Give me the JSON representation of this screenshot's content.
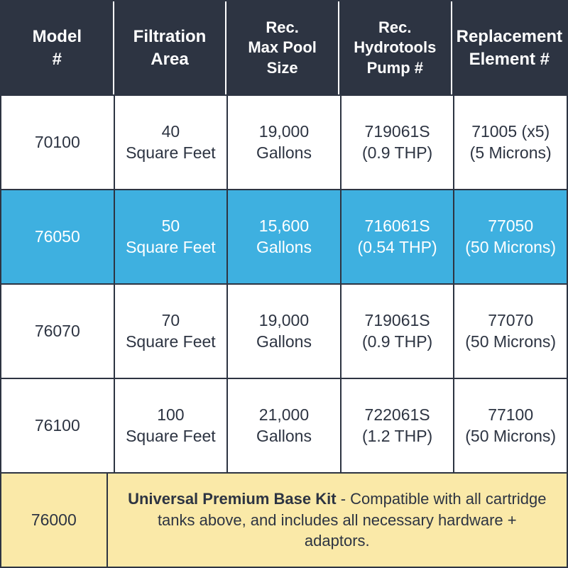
{
  "colors": {
    "header_bg": "#2d3442",
    "header_text": "#ffffff",
    "border": "#2d3442",
    "cell_bg": "#ffffff",
    "cell_text": "#2d3442",
    "highlight_bg": "#3eb0e0",
    "highlight_text": "#ffffff",
    "footer_bg": "#fae9a8"
  },
  "headers": [
    {
      "l1": "Model",
      "l2": "#"
    },
    {
      "l1": "Filtration",
      "l2": "Area"
    },
    {
      "l1": "Rec.",
      "l2": "Max Pool",
      "l3": "Size"
    },
    {
      "l1": "Rec.",
      "l2": "Hydrotools",
      "l3": "Pump #"
    },
    {
      "l1": "Replacement",
      "l2": "Element #"
    }
  ],
  "rows": [
    {
      "highlight": false,
      "model": "70100",
      "filtration_l1": "40",
      "filtration_l2": "Square Feet",
      "pool_l1": "19,000",
      "pool_l2": "Gallons",
      "pump_l1": "719061S",
      "pump_l2": "(0.9 THP)",
      "elem_l1": "71005 (x5)",
      "elem_l2": "(5 Microns)"
    },
    {
      "highlight": true,
      "model": "76050",
      "filtration_l1": "50",
      "filtration_l2": "Square Feet",
      "pool_l1": "15,600",
      "pool_l2": "Gallons",
      "pump_l1": "716061S",
      "pump_l2": "(0.54 THP)",
      "elem_l1": "77050",
      "elem_l2": "(50 Microns)"
    },
    {
      "highlight": false,
      "model": "76070",
      "filtration_l1": "70",
      "filtration_l2": "Square Feet",
      "pool_l1": "19,000",
      "pool_l2": "Gallons",
      "pump_l1": "719061S",
      "pump_l2": "(0.9 THP)",
      "elem_l1": "77070",
      "elem_l2": "(50 Microns)"
    },
    {
      "highlight": false,
      "model": "76100",
      "filtration_l1": "100",
      "filtration_l2": "Square Feet",
      "pool_l1": "21,000",
      "pool_l2": "Gallons",
      "pump_l1": "722061S",
      "pump_l2": "(1.2 THP)",
      "elem_l1": "77100",
      "elem_l2": "(50 Microns)"
    }
  ],
  "footer": {
    "model": "76000",
    "desc_bold": "Universal Premium Base Kit",
    "desc_rest": " - Compatible with all cartridge tanks above, and includes all necessary hardware + adaptors."
  }
}
